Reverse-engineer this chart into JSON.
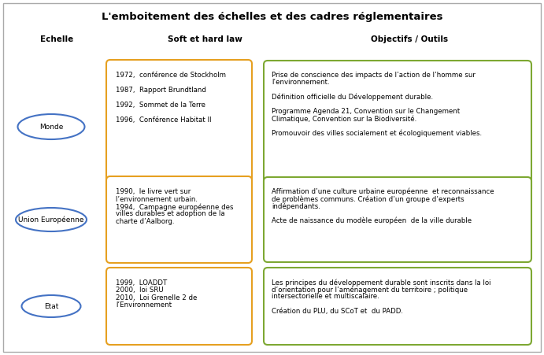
{
  "title": "L'emboitement des échelles et des cadres réglementaires",
  "col_headers": [
    "Echelle",
    "Soft et hard law",
    "Objectifs / Outils"
  ],
  "rows": [
    {
      "ellipse_label": "Monde",
      "soft_law_lines": [
        "1972,  conférence de Stockholm",
        "",
        "1987,  Rapport Brundtland",
        "",
        "1992,  Sommet de la Terre",
        "",
        "1996,  Conférence Habitat II"
      ],
      "objectives_lines": [
        "Prise de conscience des impacts de l’action de l’homme sur",
        "l’environnement.",
        "",
        "Définition officielle du Développement durable.",
        "",
        "Programme Agenda 21, Convention sur le Changement",
        "Climatique, Convention sur la Biodiversité.",
        "",
        "Promouvoir des villes socialement et écologiquement viables."
      ]
    },
    {
      "ellipse_label": "Union Européenne",
      "soft_law_lines": [
        "1990,  le livre vert sur",
        "l’environnement urbain.",
        "1994,  Campagne européenne des",
        "villes durables et adoption de la",
        "charte d’Aalborg."
      ],
      "objectives_lines": [
        "Affirmation d’une culture urbaine européenne  et reconnaissance",
        "de problèmes communs. Création d’un groupe d’experts",
        "indépendants.",
        "",
        "Acte de naissance du modèle européen  de la ville durable"
      ]
    },
    {
      "ellipse_label": "Etat",
      "soft_law_lines": [
        "1999,  LOADDT",
        "2000,  loi SRU",
        "2010,  Loi Grenelle 2 de",
        "l’Environnement"
      ],
      "objectives_lines": [
        "Les principes du développement durable sont inscrits dans la loi",
        "d’orientation pour l’aménagement du territoire ; politique",
        "intersectorielle et multiscalaire.",
        "",
        "Création du PLU, du SCoT et  du PADD."
      ]
    }
  ],
  "ellipse_color": "#4472C4",
  "soft_box_color": "#E6A020",
  "obj_box_color": "#7DA832",
  "bg_color": "#FFFFFF",
  "border_color": "#AAAAAA",
  "title_fontsize": 9.5,
  "header_fontsize": 7.5,
  "body_fontsize": 6.2,
  "ellipse_label_fontsize": 6.5
}
